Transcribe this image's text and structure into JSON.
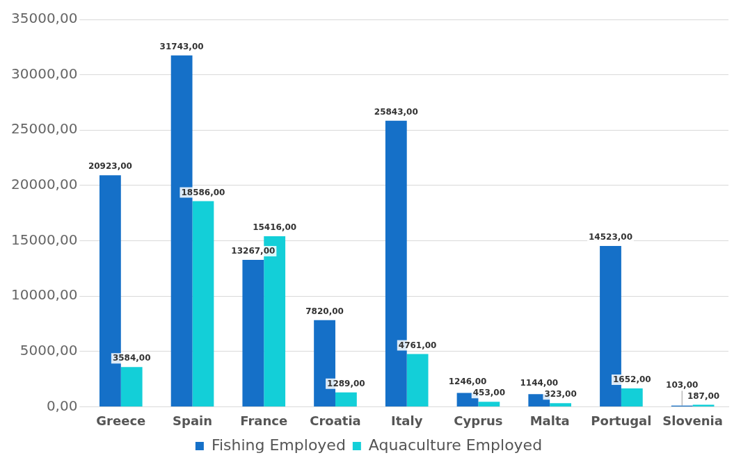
{
  "chart_data": {
    "type": "bar",
    "categories": [
      "Greece",
      "Spain",
      "France",
      "Croatia",
      "Italy",
      "Cyprus",
      "Malta",
      "Portugal",
      "Slovenia"
    ],
    "series": [
      {
        "name": "Fishing Employed",
        "color": "#1570c8",
        "values": [
          20923,
          31743,
          13267,
          7820,
          25843,
          1246,
          1144,
          14523,
          103
        ],
        "value_labels": [
          "20923,00",
          "31743,00",
          "13267,00",
          "7820,00",
          "25843,00",
          "1246,00",
          "1144,00",
          "14523,00",
          "103,00"
        ]
      },
      {
        "name": "Aquaculture Employed",
        "color": "#13cfd8",
        "values": [
          3584,
          18586,
          15416,
          1289,
          4761,
          453,
          323,
          1652,
          187
        ],
        "value_labels": [
          "3584,00",
          "18586,00",
          "15416,00",
          "1289,00",
          "4761,00",
          "453,00",
          "323,00",
          "1652,00",
          "187,00"
        ]
      }
    ],
    "ylim": [
      0,
      35000
    ],
    "yticks": [
      {
        "value": 0,
        "label": "0,00"
      },
      {
        "value": 5000,
        "label": "5000,00"
      },
      {
        "value": 10000,
        "label": "10000,00"
      },
      {
        "value": 15000,
        "label": "15000,00"
      },
      {
        "value": 20000,
        "label": "20000,00"
      },
      {
        "value": 25000,
        "label": "25000,00"
      },
      {
        "value": 30000,
        "label": "30000,00"
      },
      {
        "value": 35000,
        "label": "35000,00"
      }
    ],
    "grid": "y",
    "legend": "bottom"
  }
}
